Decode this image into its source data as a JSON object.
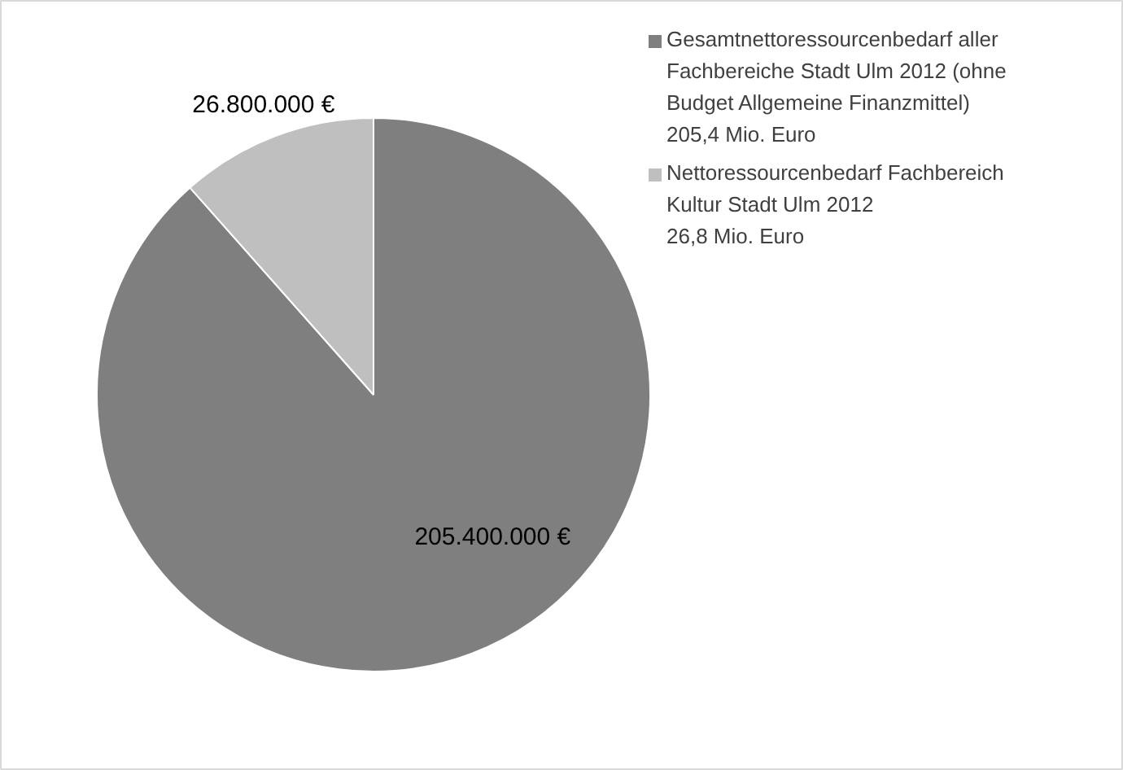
{
  "chart_data": {
    "type": "pie",
    "categories": [
      "Gesamtnettoressourcenbedarf aller\nFachbereiche Stadt Ulm 2012 (ohne\nBudget Allgemeine Finanzmittel)\n205,4 Mio. Euro",
      "Nettoressourcenbedarf Fachbereich\nKultur Stadt Ulm 2012\n26,8 Mio. Euro"
    ],
    "values": [
      205400000,
      26800000
    ],
    "colors": [
      "#7f7f7f",
      "#bfbfbf"
    ],
    "value_labels": [
      "205.400.000 €",
      "26.800.000 €"
    ],
    "legend": "right"
  }
}
